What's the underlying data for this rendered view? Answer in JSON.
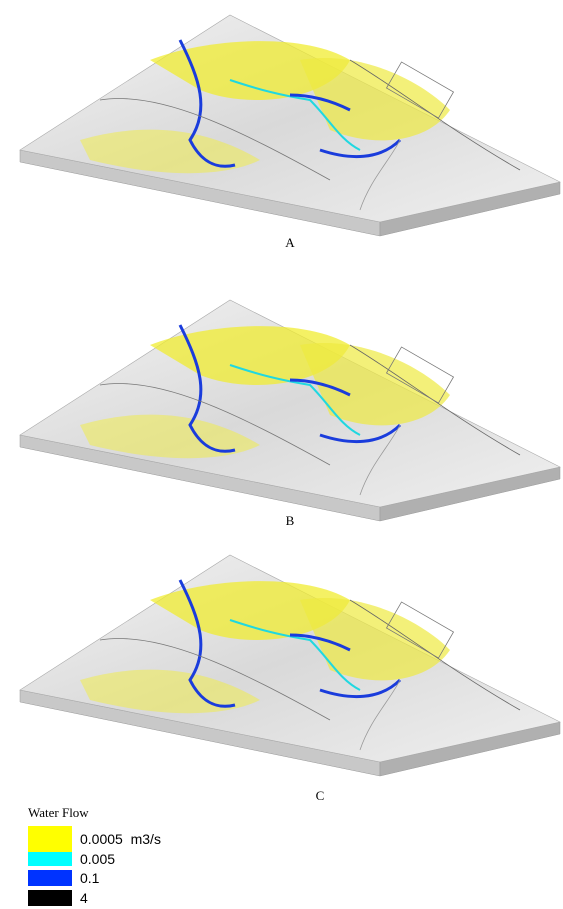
{
  "panels": [
    {
      "label": "A"
    },
    {
      "label": "B"
    },
    {
      "label": "C"
    }
  ],
  "legend": {
    "title": "Water Flow",
    "items": [
      {
        "label": "0.0005  m3/s",
        "color": "#ffff00"
      },
      {
        "label": "0.005",
        "color": "#00ffff"
      },
      {
        "label": "0.1",
        "color": "#0033ff"
      },
      {
        "label": "4",
        "color": "#000000"
      }
    ]
  }
}
